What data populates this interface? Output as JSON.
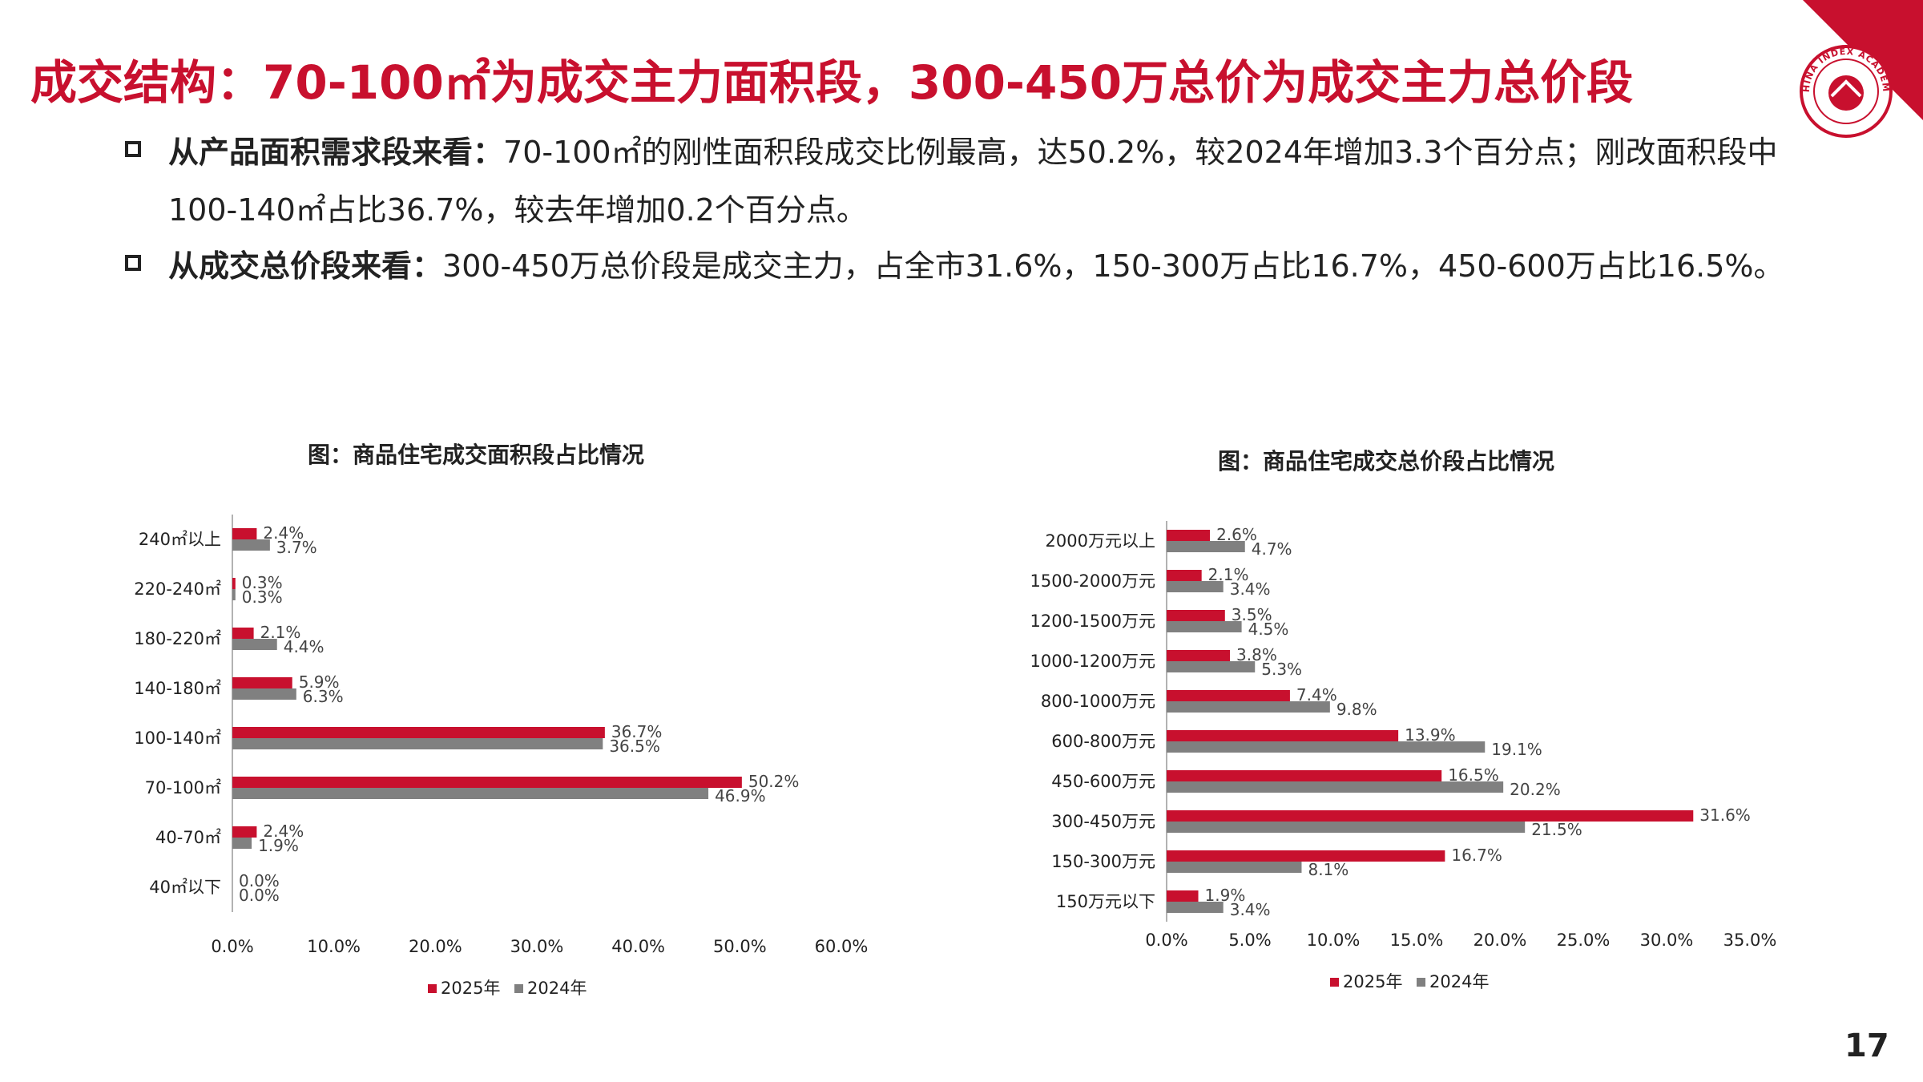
{
  "title": "成交结构：70-100㎡为成交主力面积段，300-450万总价为成交主力总价段",
  "logo": {
    "label": "CHINA INDEX ACADEMY"
  },
  "bullets": [
    {
      "lead": "从产品面积需求段来看：",
      "text": "70-100㎡的刚性面积段成交比例最高，达50.2%，较2024年增加3.3个百分点；刚改面积段中100-140㎡占比36.7%，较去年增加0.2个百分点。"
    },
    {
      "lead": "从成交总价段来看：",
      "text": "300-450万总价段是成交主力，占全市31.6%，150-300万占比16.7%，450-600万占比16.5%。"
    }
  ],
  "colors": {
    "accent": "#c8102e",
    "series_2025": "#c8102e",
    "series_2024": "#808080"
  },
  "page_number": "17",
  "chart_data": [
    {
      "type": "bar",
      "orientation": "horizontal",
      "title": "图：商品住宅成交面积段占比情况",
      "categories": [
        "240㎡以上",
        "220-240㎡",
        "180-220㎡",
        "140-180㎡",
        "100-140㎡",
        "70-100㎡",
        "40-70㎡",
        "40㎡以下"
      ],
      "series": [
        {
          "name": "2025年",
          "values": [
            2.4,
            0.3,
            2.1,
            5.9,
            36.7,
            50.2,
            2.4,
            0.0
          ]
        },
        {
          "name": "2024年",
          "values": [
            3.7,
            0.3,
            4.4,
            6.3,
            36.5,
            46.9,
            1.9,
            0.0
          ]
        }
      ],
      "xlim": [
        0,
        60
      ],
      "xticks": [
        "0.0%",
        "10.0%",
        "20.0%",
        "30.0%",
        "40.0%",
        "50.0%",
        "60.0%"
      ],
      "legend": "bottom",
      "grid": false
    },
    {
      "type": "bar",
      "orientation": "horizontal",
      "title": "图：商品住宅成交总价段占比情况",
      "categories": [
        "2000万元以上",
        "1500-2000万元",
        "1200-1500万元",
        "1000-1200万元",
        "800-1000万元",
        "600-800万元",
        "450-600万元",
        "300-450万元",
        "150-300万元",
        "150万元以下"
      ],
      "series": [
        {
          "name": "2025年",
          "values": [
            2.6,
            2.1,
            3.5,
            3.8,
            7.4,
            13.9,
            16.5,
            31.6,
            16.7,
            1.9
          ]
        },
        {
          "name": "2024年",
          "values": [
            4.7,
            3.4,
            4.5,
            5.3,
            9.8,
            19.1,
            20.2,
            21.5,
            8.1,
            3.4
          ]
        }
      ],
      "xlim": [
        0,
        35
      ],
      "xticks": [
        "0.0%",
        "5.0%",
        "10.0%",
        "15.0%",
        "20.0%",
        "25.0%",
        "30.0%",
        "35.0%"
      ],
      "legend": "bottom",
      "grid": false
    }
  ]
}
